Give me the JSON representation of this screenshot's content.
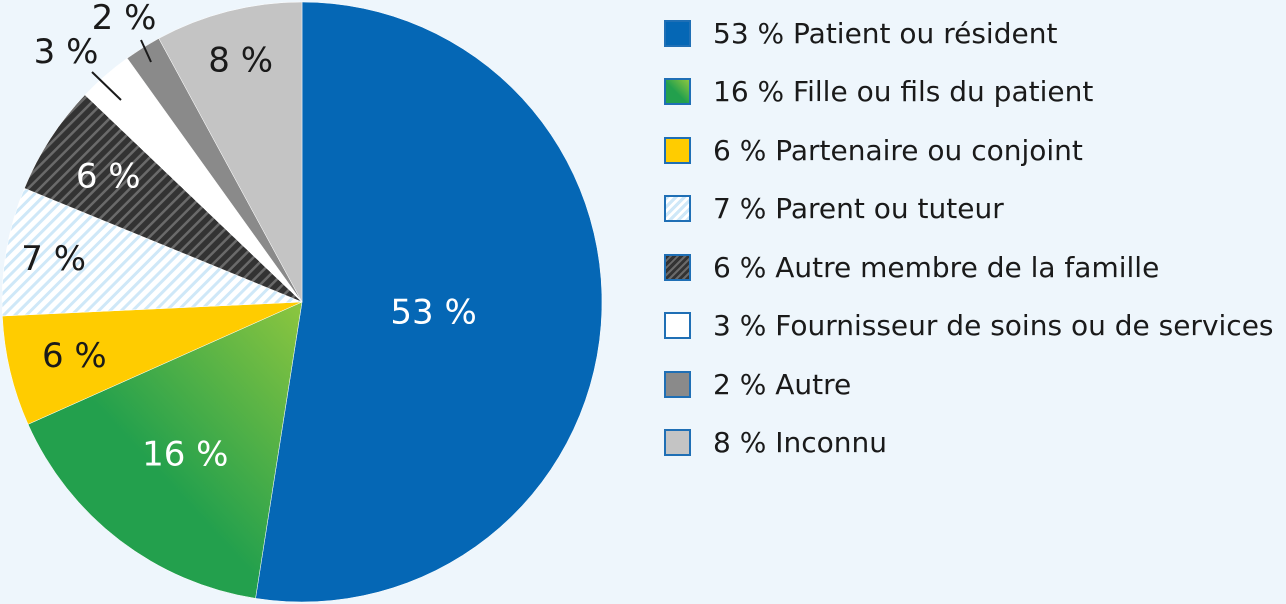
{
  "chart_data": {
    "type": "pie",
    "title": "",
    "start_angle_deg": 0,
    "direction": "clockwise",
    "slices": [
      {
        "key": "patient",
        "value": 53,
        "label": "53 %",
        "legend": "53 % Patient ou résident",
        "color": "#0567b5",
        "fill": "solid",
        "label_color": "#ffffff"
      },
      {
        "key": "child",
        "value": 16,
        "label": "16 %",
        "legend": "16 % Fille ou fils du patient",
        "color": "#23a04d",
        "color2": "#8dc63f",
        "fill": "gradient",
        "label_color": "#ffffff"
      },
      {
        "key": "partner",
        "value": 6,
        "label": "6 %",
        "legend": "6 % Partenaire ou conjoint",
        "color": "#ffcc00",
        "fill": "solid",
        "label_color": "#1a1a1a"
      },
      {
        "key": "parent",
        "value": 7,
        "label": "7 %",
        "legend": "7 % Parent ou tuteur",
        "color": "#cfe8f8",
        "color2": "#ffffff",
        "fill": "hatch-light",
        "label_color": "#1a1a1a"
      },
      {
        "key": "family",
        "value": 6,
        "label": "6 %",
        "legend": "6 % Autre membre de la famille",
        "color": "#333333",
        "color2": "#6a6a6a",
        "fill": "hatch-dark",
        "label_color": "#ffffff"
      },
      {
        "key": "provider",
        "value": 3,
        "label": "3 %",
        "legend": "3 % Fournisseur de soins ou de services",
        "color": "#ffffff",
        "fill": "solid",
        "label_color": "#1a1a1a",
        "label_outside": true
      },
      {
        "key": "other",
        "value": 2,
        "label": "2 %",
        "legend": "2 % Autre",
        "color": "#8a8a8a",
        "fill": "solid",
        "label_color": "#1a1a1a",
        "label_outside": true
      },
      {
        "key": "unknown",
        "value": 8,
        "label": "8 %",
        "legend": "8 % Inconnu",
        "color": "#c4c4c4",
        "fill": "solid",
        "label_color": "#1a1a1a"
      }
    ],
    "legend_position": "right"
  }
}
